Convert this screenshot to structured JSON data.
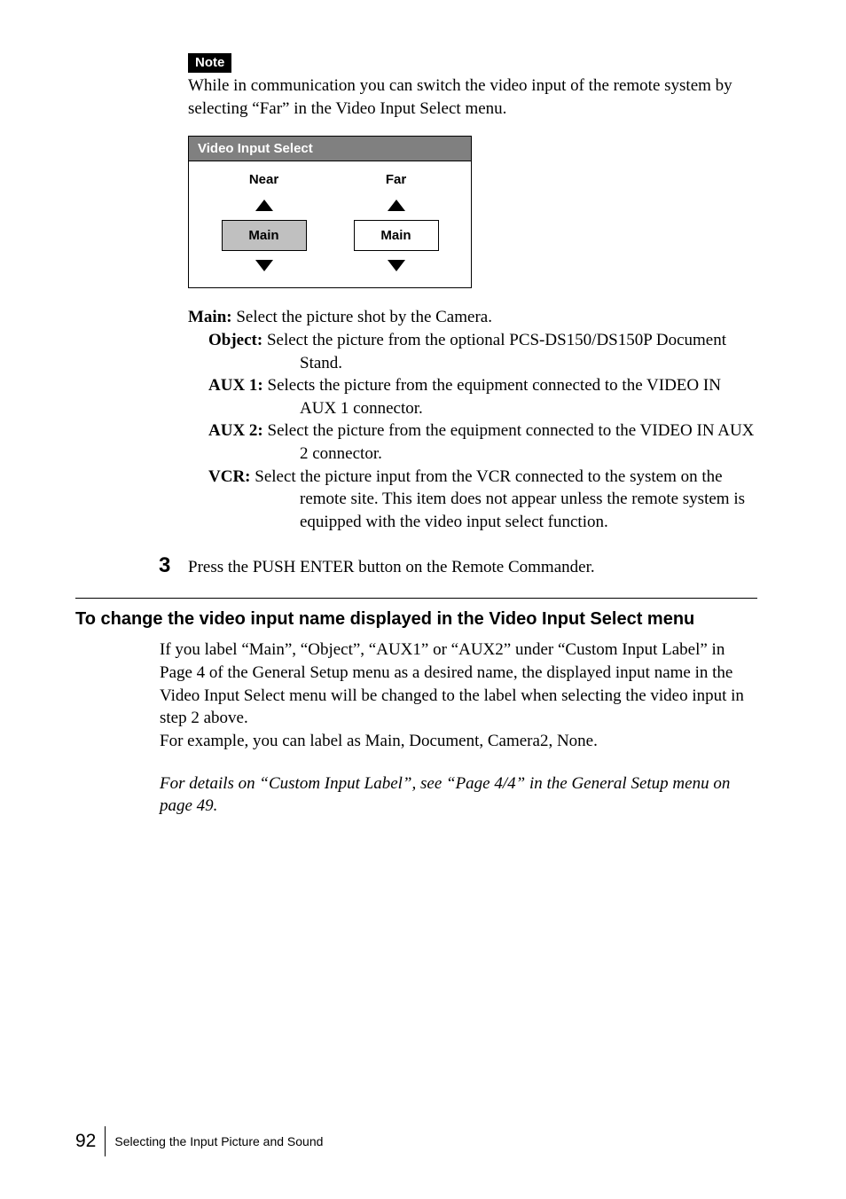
{
  "note": {
    "label": "Note",
    "text": "While in communication you can switch the video input of the remote system by selecting “Far” in the Video Input Select menu."
  },
  "menu": {
    "title": "Video Input Select",
    "near": {
      "label": "Near",
      "option": "Main"
    },
    "far": {
      "label": "Far",
      "option": "Main"
    }
  },
  "definitions": {
    "main": {
      "term": "Main:",
      "text": "Select the picture shot by the Camera."
    },
    "object": {
      "term": "Object:",
      "text": "Select the picture from the optional PCS-DS150/DS150P Document Stand."
    },
    "aux1": {
      "term": "AUX 1:",
      "text": "Selects the picture from the equipment connected to the VIDEO IN AUX 1 connector."
    },
    "aux2": {
      "term": "AUX 2:",
      "text": "Select the picture from the equipment connected to the VIDEO IN AUX 2 connector."
    },
    "vcr": {
      "term": "VCR:",
      "text": "Select the picture input from the VCR connected to the system on the remote site. This item does not appear unless the remote system is equipped with the video input select function."
    }
  },
  "step": {
    "number": "3",
    "text": "Press the PUSH ENTER button on the Remote Commander."
  },
  "section": {
    "heading": "To change the video input name displayed in the Video Input Select menu",
    "para1": "If you label “Main”, “Object”, “AUX1” or “AUX2” under “Custom Input Label” in Page 4 of the General Setup menu as a desired name, the displayed input name in the Video Input Select menu will be changed to the label when selecting the video input in step 2 above.",
    "para2": "For example, you can label as Main, Document, Camera2, None.",
    "para3": "For details on “Custom Input Label”, see “Page 4/4” in the General Setup menu on  page 49."
  },
  "footer": {
    "page": "92",
    "caption": "Selecting the Input Picture and Sound"
  }
}
